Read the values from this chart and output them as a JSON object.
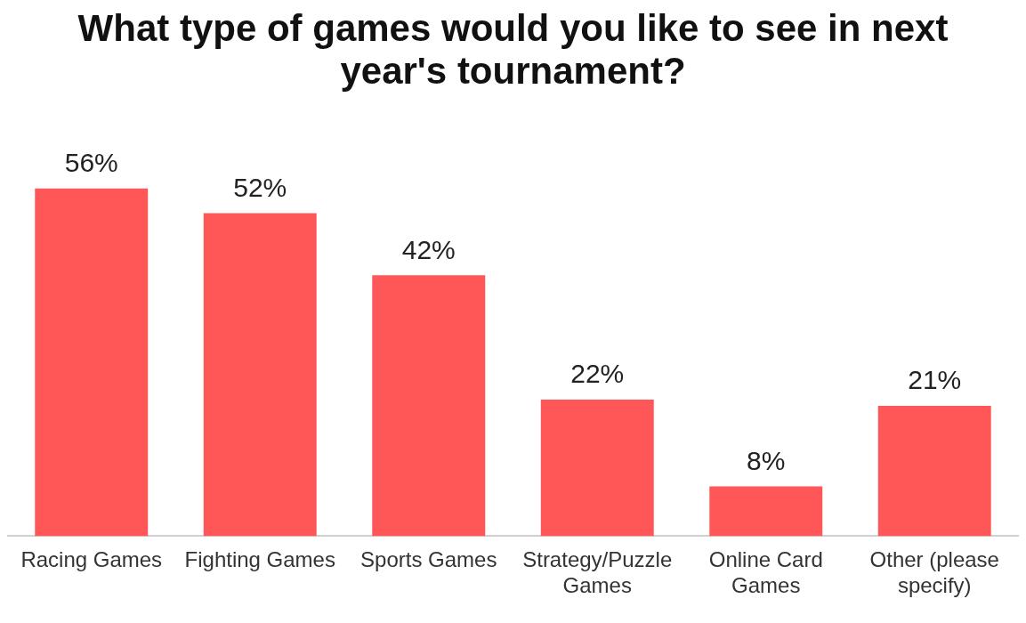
{
  "chart_data": {
    "type": "bar",
    "title": "What type of games would you like to see in next year's tournament?",
    "categories": [
      "Racing Games",
      "Fighting Games",
      "Sports Games",
      "Strategy/Puzzle Games",
      "Online Card Games",
      "Other (please specify)"
    ],
    "values": [
      56,
      52,
      42,
      22,
      8,
      21
    ],
    "value_labels": [
      "56%",
      "52%",
      "42%",
      "22%",
      "8%",
      "21%"
    ],
    "color": "#ff5757",
    "grid": false,
    "legend": false
  }
}
